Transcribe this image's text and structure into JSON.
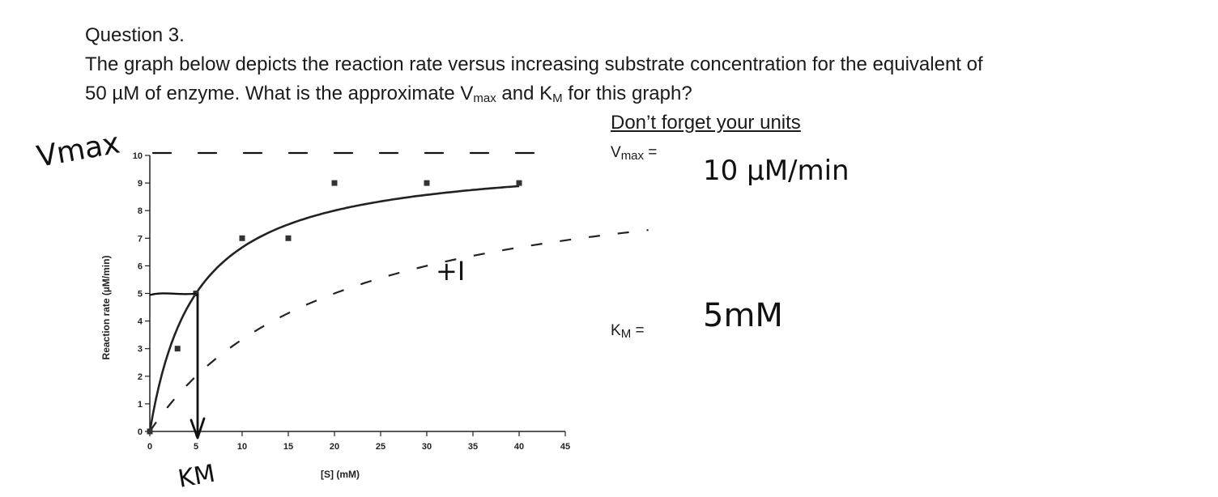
{
  "question": {
    "title": "Question 3.",
    "line1": "The graph below depicts the reaction rate versus increasing substrate concentration for the equivalent of",
    "line2_a": "50 µM of enzyme. What is the approximate V",
    "line2_sub1": "max",
    "line2_b": " and K",
    "line2_sub2": "M",
    "line2_c": " for this graph?"
  },
  "answers": {
    "units_note": "Don’t forget your units",
    "vmax_label": "V",
    "vmax_sub": "max",
    "vmax_eq": " =",
    "vmax_value": "10 µM/min",
    "km_label": "K",
    "km_sub": "M",
    "km_eq": " =",
    "km_value": "5mM"
  },
  "handwriting": {
    "vmax": "Vmax",
    "km": "KM",
    "inhibitor": "+I"
  },
  "chart_data": {
    "type": "scatter",
    "xlabel": "[S] (mM)",
    "ylabel": "Reaction rate (µM/min)",
    "xlim": [
      0,
      45
    ],
    "ylim": [
      0,
      10
    ],
    "xticks": [
      0,
      5,
      10,
      15,
      20,
      25,
      30,
      35,
      40,
      45
    ],
    "yticks": [
      0,
      1,
      2,
      3,
      4,
      5,
      6,
      7,
      8,
      9,
      10
    ],
    "points": [
      {
        "x": 0,
        "y": 0
      },
      {
        "x": 3,
        "y": 3
      },
      {
        "x": 5,
        "y": 5
      },
      {
        "x": 10,
        "y": 7
      },
      {
        "x": 15,
        "y": 7
      },
      {
        "x": 20,
        "y": 9
      },
      {
        "x": 30,
        "y": 9
      },
      {
        "x": 40,
        "y": 9
      }
    ],
    "fit": {
      "vmax": 10,
      "km": 5,
      "x_max": 40
    },
    "inhibited_fit": {
      "vmax": 10,
      "km": 20,
      "x_max": 54
    },
    "grid": false
  }
}
